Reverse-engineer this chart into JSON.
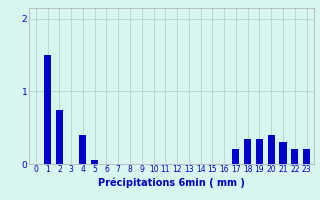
{
  "title": "",
  "xlabel": "Précipitations 6min ( mm )",
  "ylabel": "",
  "bar_color": "#0000cc",
  "background_color": "#d8f5f0",
  "grid_color": "#aacccc",
  "text_color": "#0000cc",
  "xlim": [
    -0.6,
    23.6
  ],
  "ylim": [
    0,
    2.15
  ],
  "yticks": [
    0,
    1,
    2
  ],
  "xtick_labels": [
    "0",
    "1",
    "2",
    "3",
    "4",
    "5",
    "6",
    "7",
    "8",
    "9",
    "10",
    "11",
    "12",
    "13",
    "14",
    "15",
    "16",
    "17",
    "18",
    "19",
    "20",
    "21",
    "22",
    "23"
  ],
  "values": [
    0,
    1.5,
    0.75,
    0,
    0.4,
    0.05,
    0,
    0,
    0,
    0,
    0,
    0,
    0,
    0,
    0,
    0,
    0,
    0.2,
    0.35,
    0.35,
    0.4,
    0.3,
    0.2,
    0.2
  ]
}
